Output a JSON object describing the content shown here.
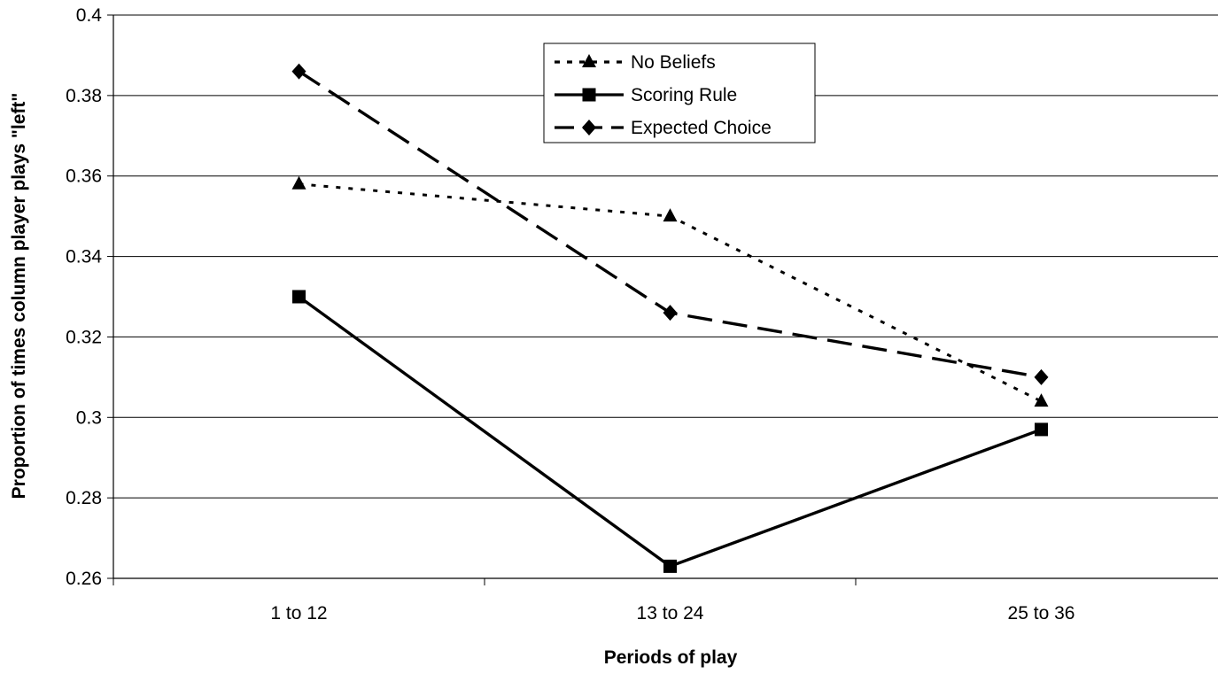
{
  "chart_data": {
    "type": "line",
    "xlabel": "Periods of play",
    "ylabel": "Proportion of times column player plays \"left\"",
    "categories": [
      "1 to 12",
      "13 to 24",
      "25 to 36"
    ],
    "ylim": [
      0.26,
      0.4
    ],
    "yticks": [
      0.26,
      0.28,
      0.3,
      0.32,
      0.34,
      0.36,
      0.38,
      0.4
    ],
    "ytick_labels": [
      "0.26",
      "0.28",
      "0.3",
      "0.32",
      "0.34",
      "0.36",
      "0.38",
      "0.4"
    ],
    "grid": "horizontal",
    "legend_position": "top-center",
    "series": [
      {
        "name": "No Beliefs",
        "values": [
          0.358,
          0.35,
          0.304
        ],
        "dash": "dotted",
        "marker": "triangle",
        "color": "#000000"
      },
      {
        "name": "Scoring Rule",
        "values": [
          0.33,
          0.263,
          0.297
        ],
        "dash": "solid",
        "marker": "square",
        "color": "#000000"
      },
      {
        "name": "Expected Choice",
        "values": [
          0.386,
          0.326,
          0.31
        ],
        "dash": "dashed",
        "marker": "diamond",
        "color": "#000000"
      }
    ]
  }
}
